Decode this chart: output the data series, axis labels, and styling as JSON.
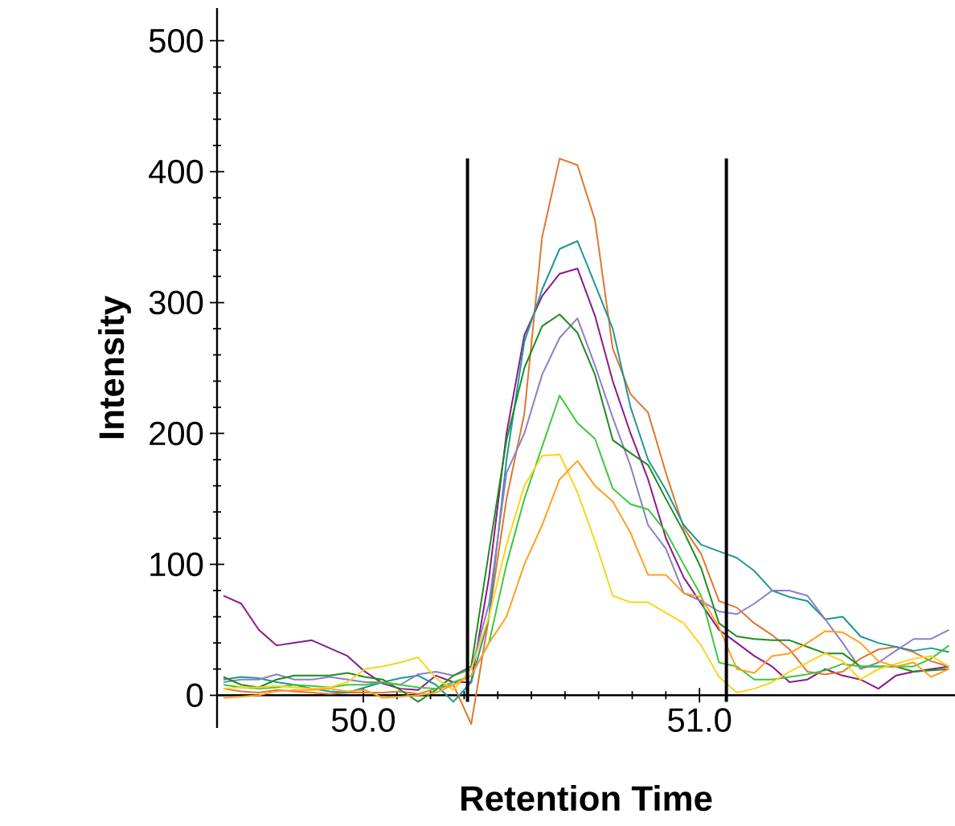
{
  "chart_data": {
    "type": "line",
    "xlabel": "Retention Time",
    "ylabel": "Intensity",
    "xlim": [
      49.565,
      51.76
    ],
    "ylim": [
      -25,
      525
    ],
    "xticks": [
      {
        "value": 50,
        "label": "50.0"
      },
      {
        "value": 51,
        "label": "51.0"
      }
    ],
    "yticks": [
      0,
      100,
      200,
      300,
      400,
      500
    ],
    "grid": false,
    "marker": "none",
    "line_style": "solid",
    "x": [
      49.584,
      49.637,
      49.689,
      49.742,
      49.795,
      49.847,
      49.9,
      49.953,
      50.005,
      50.058,
      50.11,
      50.163,
      50.216,
      50.268,
      50.321,
      50.374,
      50.426,
      50.479,
      50.532,
      50.584,
      50.637,
      50.689,
      50.742,
      50.795,
      50.847,
      50.9,
      50.953,
      51.005,
      51.058,
      51.111,
      51.163,
      51.216,
      51.268,
      51.321,
      51.374,
      51.426,
      51.479,
      51.532,
      51.584,
      51.637,
      51.689,
      51.742
    ],
    "series": [
      {
        "color": "#8b1a8b",
        "values": [
          76,
          70,
          50,
          38,
          40,
          42,
          36,
          30,
          18,
          9,
          5,
          4,
          15,
          10,
          10,
          90,
          200,
          275,
          305,
          322,
          326,
          290,
          240,
          200,
          165,
          120,
          90,
          70,
          50,
          40,
          30,
          22,
          10,
          12,
          20,
          15,
          12,
          5,
          15,
          18,
          20,
          22
        ]
      },
      {
        "color": "#e0762f",
        "values": [
          5,
          3,
          2,
          4,
          3,
          2,
          1,
          2,
          2,
          2,
          3,
          1,
          5,
          8,
          -22,
          60,
          150,
          215,
          350,
          410,
          405,
          363,
          265,
          230,
          216,
          170,
          128,
          108,
          72,
          67,
          55,
          46,
          35,
          18,
          16,
          18,
          28,
          35,
          37,
          33,
          26,
          22
        ]
      },
      {
        "color": "#1f9696",
        "values": [
          12,
          14,
          13,
          10,
          8,
          5,
          3,
          2,
          6,
          10,
          13,
          15,
          8,
          -5,
          10,
          60,
          180,
          270,
          310,
          341,
          347,
          314,
          280,
          220,
          180,
          157,
          130,
          115,
          110,
          105,
          95,
          80,
          75,
          72,
          58,
          60,
          45,
          40,
          37,
          34,
          36,
          33
        ]
      },
      {
        "color": "#8a80c4",
        "values": [
          10,
          12,
          12,
          16,
          12,
          12,
          14,
          12,
          10,
          10,
          8,
          16,
          18,
          15,
          20,
          70,
          170,
          200,
          245,
          273,
          288,
          252,
          212,
          175,
          130,
          112,
          78,
          72,
          64,
          62,
          70,
          80,
          80,
          76,
          58,
          40,
          20,
          25,
          34,
          43,
          43,
          50
        ]
      },
      {
        "color": "#1e8c1e",
        "values": [
          14,
          8,
          6,
          12,
          15,
          15,
          15,
          17,
          14,
          12,
          4,
          -5,
          4,
          15,
          22,
          110,
          195,
          250,
          282,
          291,
          277,
          245,
          195,
          185,
          176,
          150,
          125,
          97,
          55,
          45,
          43,
          42,
          42,
          37,
          32,
          32,
          22,
          22,
          22,
          18,
          19,
          20
        ]
      },
      {
        "color": "#3cc83c",
        "values": [
          8,
          6,
          5,
          6,
          8,
          7,
          6,
          8,
          8,
          10,
          8,
          6,
          5,
          10,
          15,
          40,
          100,
          150,
          190,
          229,
          208,
          196,
          158,
          146,
          142,
          125,
          100,
          76,
          25,
          22,
          12,
          12,
          14,
          16,
          19,
          24,
          22,
          22,
          22,
          22,
          28,
          38
        ]
      },
      {
        "color": "#ffd21a",
        "values": [
          5,
          6,
          6,
          7,
          6,
          5,
          6,
          10,
          20,
          22,
          25,
          29,
          13,
          4,
          20,
          60,
          115,
          160,
          183,
          184,
          155,
          118,
          76,
          71,
          71,
          63,
          55,
          38,
          14,
          2,
          5,
          10,
          18,
          25,
          32,
          26,
          12,
          20,
          24,
          28,
          30,
          22
        ]
      },
      {
        "color": "#ffa020",
        "values": [
          -2,
          -1,
          0,
          3,
          4,
          4,
          5,
          3,
          4,
          -2,
          -1,
          0,
          2,
          8,
          15,
          40,
          60,
          100,
          130,
          165,
          179,
          160,
          148,
          124,
          92,
          92,
          78,
          75,
          52,
          20,
          17,
          30,
          32,
          40,
          49,
          48,
          40,
          26,
          22,
          25,
          14,
          20
        ]
      }
    ],
    "ref_lines": [
      {
        "axis": "x",
        "value": 50.31,
        "color": "#000000"
      },
      {
        "axis": "x",
        "value": 51.08,
        "color": "#000000"
      }
    ]
  }
}
